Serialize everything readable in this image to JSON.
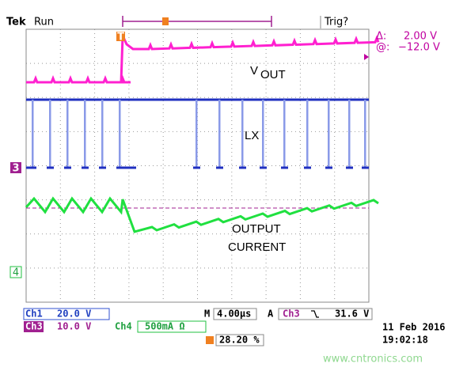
{
  "header": {
    "brand": "Tek",
    "status": "Run",
    "trigger_state": "Trig?"
  },
  "cursor": {
    "delta_label": "Δ:",
    "delta_value": "2.00 V",
    "at_label": "@:",
    "at_value": "−12.0 V"
  },
  "labels": {
    "vout_v": "V",
    "vout_sub": "OUT",
    "lx": "LX",
    "current_line1": "OUTPUT",
    "current_line2": "CURRENT"
  },
  "markers": {
    "ch3": "3",
    "ch4": "4",
    "trigger": "T"
  },
  "footer": {
    "ch1_name": "Ch1",
    "ch1_scale": "20.0 V",
    "ch3_name": "Ch3",
    "ch3_scale": "10.0 V",
    "ch4_name": "Ch4",
    "ch4_scale": "500mA Ω",
    "timebase_label": "M",
    "timebase": "4.00µs",
    "trigger_mode": "A",
    "trigger_source": "Ch3",
    "trigger_level": "31.6 V",
    "position": "28.20 %",
    "date": "11 Feb 2016",
    "time": "19:02:18"
  },
  "watermark": "www.cntronics.com"
}
